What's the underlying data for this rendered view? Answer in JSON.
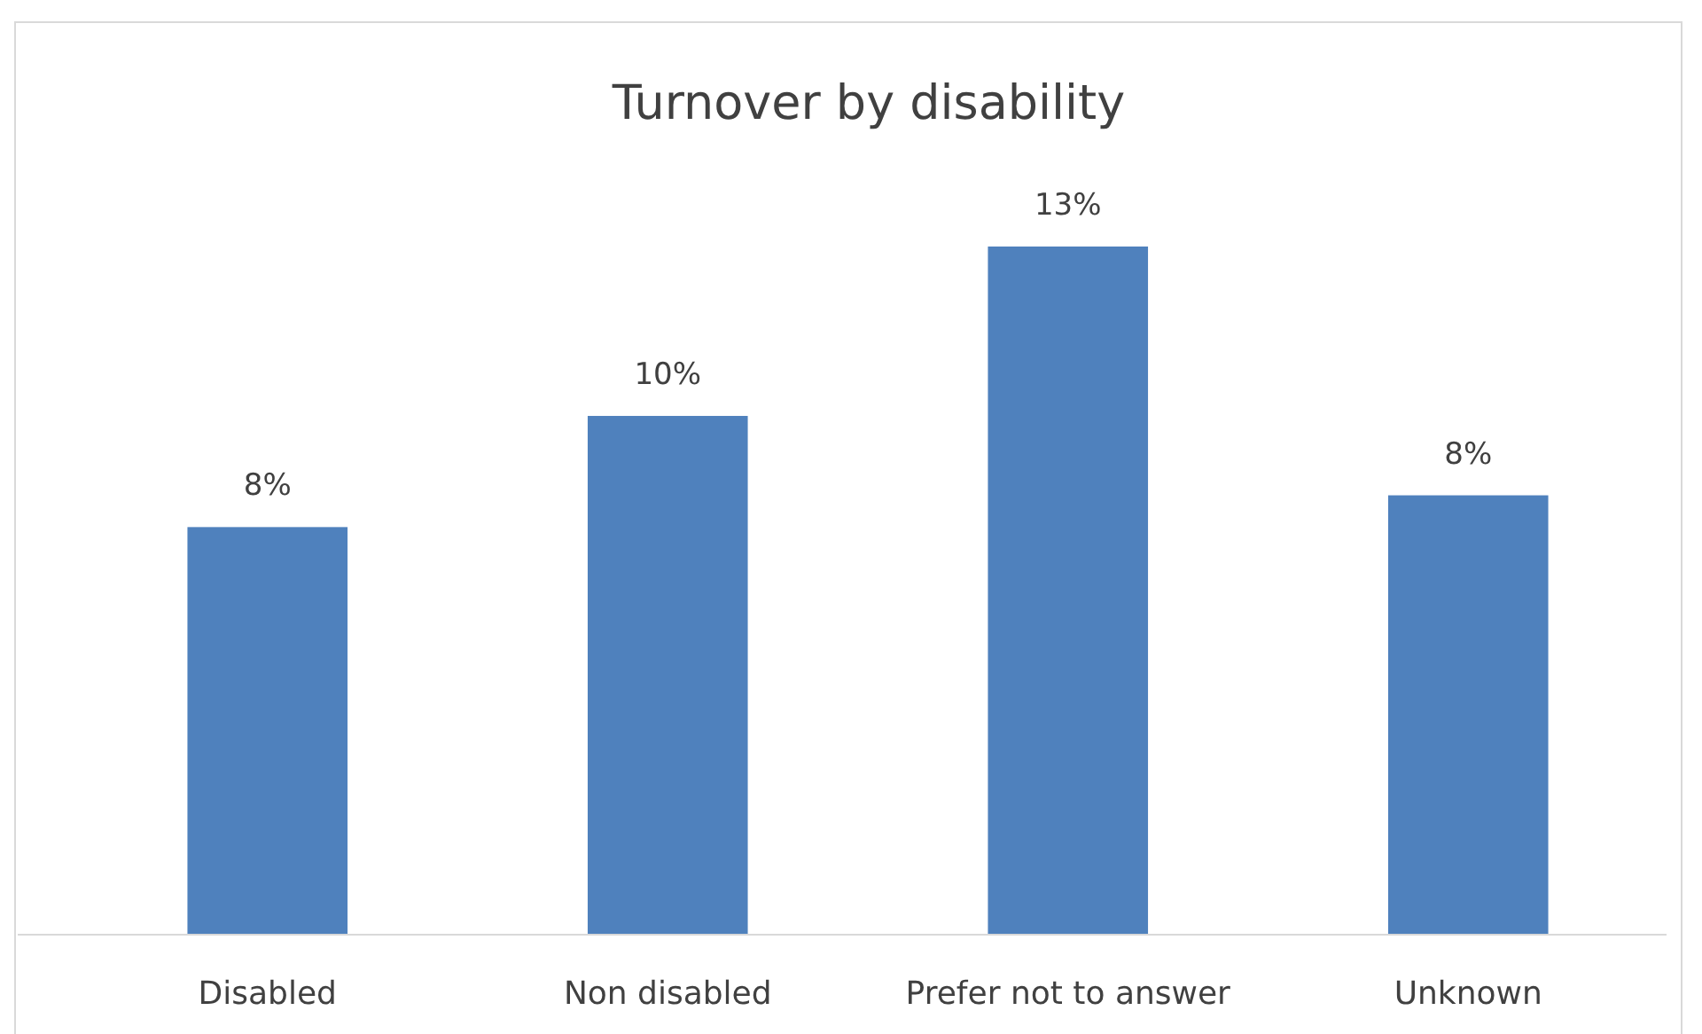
{
  "chart_data": {
    "type": "bar",
    "title": "Turnover by disability",
    "categories": [
      "Disabled",
      "Non disabled",
      "Prefer not to answer",
      "Unknown"
    ],
    "values": [
      7.7,
      9.8,
      13.0,
      8.3
    ],
    "value_labels": [
      "8%",
      "10%",
      "13%",
      "8%"
    ],
    "color": "#4f81bd"
  }
}
